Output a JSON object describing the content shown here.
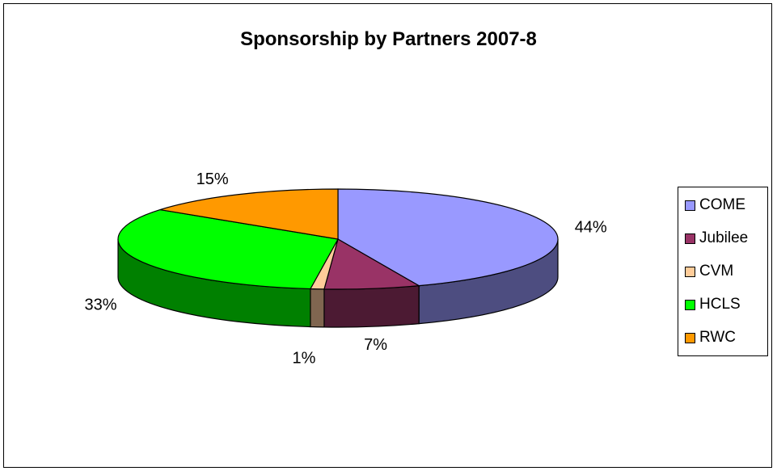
{
  "chart_data": {
    "type": "pie",
    "title": "Sponsorship by Partners 2007-8",
    "categories": [
      "COME",
      "Jubilee",
      "CVM",
      "HCLS",
      "RWC"
    ],
    "values": [
      44,
      7,
      1,
      33,
      15
    ],
    "labels": [
      "44%",
      "7%",
      "1%",
      "33%",
      "15%"
    ],
    "colors": [
      "#9999ff",
      "#993366",
      "#ffcc99",
      "#00ff00",
      "#ff9900"
    ],
    "side_colors": [
      "#4d4d80",
      "#4c1a33",
      "#806650",
      "#008000",
      "#804c00"
    ],
    "three_d": true,
    "legend": "right"
  }
}
